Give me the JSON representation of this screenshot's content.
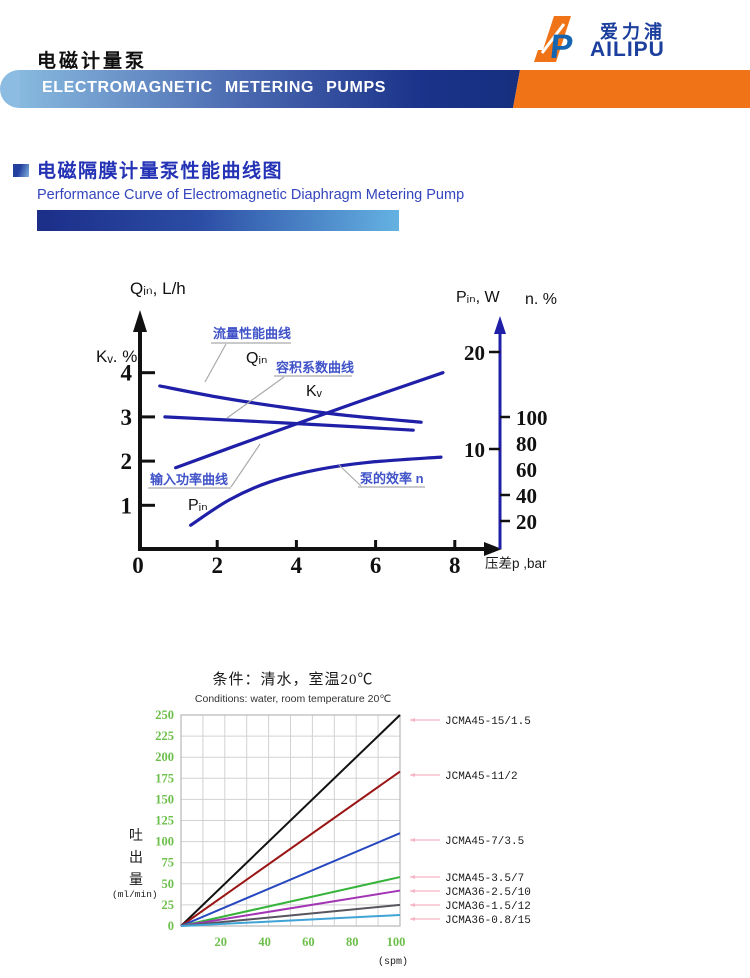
{
  "header": {
    "title": "电磁计量泵",
    "banner": "ELECTROMAGNETIC METERING PUMPS",
    "logo": {
      "cn": "爱力浦",
      "en": "AILIPU"
    }
  },
  "section": {
    "title": "电磁隔膜计量泵性能曲线图",
    "subtitle": "Performance Curve of Electromagnetic Diaphragm Metering Pump"
  },
  "colors": {
    "brand_orange": "#f07318",
    "brand_blue": "#1c3f9e",
    "banner_blue_dark": "#162f7e",
    "banner_blue_light": "#87b9de",
    "section_blue": "#2433b6",
    "curve_blue": "#1f1fa8",
    "label_blue": "#4053c8",
    "leader_gray": "#aaaaaa",
    "tick_green": "#6cbf4a",
    "legend_pink": "#f6b3c3"
  },
  "chart_data": [
    {
      "type": "line",
      "name": "performance-curve",
      "top_left_label": "Qᵢₙ, L/h",
      "left_label": "Kᵥ. %",
      "right_label_1": "Pᵢₙ, W",
      "right_label_2": "n. %",
      "xlabel": "压差p ,bar",
      "x_ticks": [
        0,
        2,
        4,
        6,
        8
      ],
      "xlim": [
        0,
        8
      ],
      "left_ticks": [
        4,
        3,
        2,
        1
      ],
      "left_lim": [
        0,
        4.3
      ],
      "watt_ticks": [
        20,
        10
      ],
      "pct_ticks": [
        100,
        80,
        60,
        40,
        20
      ],
      "axis_color": "#111111",
      "curve_color": "#1f1fa8",
      "series": [
        {
          "name": "流量性能曲线",
          "symbol": "Qᵢₙ",
          "points": [
            [
              0.55,
              3.7
            ],
            [
              2.0,
              3.45
            ],
            [
              3.5,
              3.24
            ],
            [
              5.2,
              3.04
            ],
            [
              7.15,
              2.88
            ]
          ]
        },
        {
          "name": "容积系数曲线",
          "symbol": "Kᵥ",
          "points": [
            [
              0.68,
              3.0
            ],
            [
              2.5,
              2.92
            ],
            [
              5.0,
              2.8
            ],
            [
              6.95,
              2.7
            ]
          ]
        },
        {
          "name": "输入功率曲线",
          "symbol": "Pᵢₙ",
          "points": [
            [
              0.95,
              1.85
            ],
            [
              3.0,
              2.52
            ],
            [
              5.5,
              3.32
            ],
            [
              7.7,
              4.0
            ]
          ]
        },
        {
          "name": "泵的效率 n",
          "symbol": "",
          "points": [
            [
              1.33,
              0.55
            ],
            [
              2.3,
              1.12
            ],
            [
              3.3,
              1.52
            ],
            [
              4.5,
              1.8
            ],
            [
              5.8,
              1.97
            ],
            [
              7.65,
              2.09
            ]
          ]
        }
      ]
    },
    {
      "type": "line",
      "name": "flow-vs-stroke",
      "title": "条件：清水，室温20℃",
      "subtitle": "Conditions: water, room temperature 20℃",
      "ylabel": "吐出量",
      "ylabel_unit": "(ml/min)",
      "xlabel_unit": "(spm)",
      "x_ticks": [
        20,
        40,
        60,
        80,
        100
      ],
      "y_ticks": [
        0,
        25,
        50,
        75,
        100,
        125,
        150,
        175,
        200,
        225,
        250
      ],
      "xlim": [
        0,
        100
      ],
      "ylim": [
        0,
        250
      ],
      "grid": true,
      "tick_color": "#6cbf4a",
      "legend_leader_color": "#f6b3c3",
      "series": [
        {
          "name": "JCMA45-15/1.5",
          "color": "#111111",
          "x": [
            0,
            100
          ],
          "y": [
            0,
            250
          ]
        },
        {
          "name": "JCMA45-11/2",
          "color": "#9a1515",
          "x": [
            0,
            100
          ],
          "y": [
            0,
            183
          ]
        },
        {
          "name": "JCMA45-7/3.5",
          "color": "#2547c0",
          "x": [
            0,
            100
          ],
          "y": [
            0,
            110
          ]
        },
        {
          "name": "JCMA45-3.5/7",
          "color": "#35b33a",
          "x": [
            0,
            100
          ],
          "y": [
            0,
            58
          ]
        },
        {
          "name": "JCMA36-2.5/10",
          "color": "#a335b5",
          "x": [
            0,
            100
          ],
          "y": [
            0,
            42
          ]
        },
        {
          "name": "JCMA36-1.5/12",
          "color": "#57555e",
          "x": [
            0,
            100
          ],
          "y": [
            0,
            25
          ]
        },
        {
          "name": "JCMA36-0.8/15",
          "color": "#3fa3d6",
          "x": [
            0,
            100
          ],
          "y": [
            0,
            13
          ]
        }
      ]
    }
  ]
}
